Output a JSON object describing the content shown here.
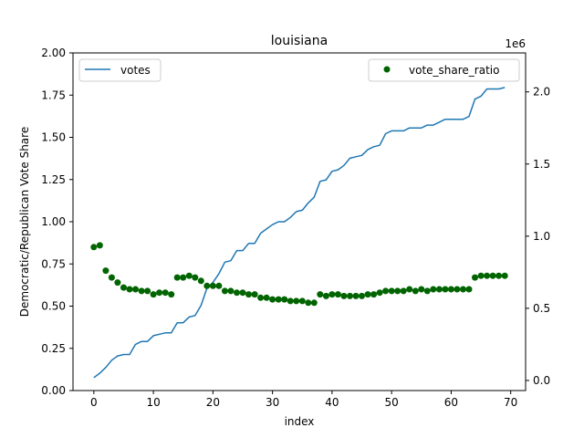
{
  "chart_data": {
    "type": "line+scatter",
    "title": "louisiana",
    "xlabel": "index",
    "ylabel": "Democratic/Republican Vote Share",
    "y2_offset_label": "1e6",
    "xlim": [
      -3.5,
      72.5
    ],
    "ylim": [
      0,
      2.0
    ],
    "y2lim": [
      -0.07,
      2.27
    ],
    "x_ticks": [
      0,
      10,
      20,
      30,
      40,
      50,
      60,
      70
    ],
    "y_ticks": [
      "0.00",
      "0.25",
      "0.50",
      "0.75",
      "1.00",
      "1.25",
      "1.50",
      "1.75",
      "2.00"
    ],
    "y2_ticks": [
      "0.0",
      "0.5",
      "1.0",
      "1.5",
      "2.0"
    ],
    "grid": false,
    "legend_left": {
      "position": "upper left",
      "label": "votes"
    },
    "legend_right": {
      "position": "upper right",
      "label": "vote_share_ratio"
    },
    "series": [
      {
        "name": "votes",
        "axis": "right",
        "kind": "line",
        "color": "#1f77b4",
        "x": [
          0,
          1,
          2,
          3,
          4,
          5,
          6,
          7,
          8,
          9,
          10,
          11,
          12,
          13,
          14,
          15,
          16,
          17,
          18,
          19,
          20,
          21,
          22,
          23,
          24,
          25,
          26,
          27,
          28,
          29,
          30,
          31,
          32,
          33,
          34,
          35,
          36,
          37,
          38,
          39,
          40,
          41,
          42,
          43,
          44,
          45,
          46,
          47,
          48,
          49,
          50,
          51,
          52,
          53,
          54,
          55,
          56,
          57,
          58,
          59,
          60,
          61,
          62,
          63,
          64,
          65,
          66,
          67,
          68,
          69
        ],
        "values": [
          0.02,
          0.05,
          0.09,
          0.14,
          0.17,
          0.18,
          0.18,
          0.25,
          0.27,
          0.27,
          0.31,
          0.32,
          0.33,
          0.33,
          0.4,
          0.4,
          0.44,
          0.45,
          0.52,
          0.64,
          0.68,
          0.74,
          0.82,
          0.83,
          0.9,
          0.9,
          0.95,
          0.95,
          1.02,
          1.05,
          1.08,
          1.1,
          1.1,
          1.13,
          1.17,
          1.18,
          1.23,
          1.27,
          1.38,
          1.39,
          1.45,
          1.46,
          1.49,
          1.54,
          1.55,
          1.56,
          1.6,
          1.62,
          1.63,
          1.71,
          1.73,
          1.73,
          1.73,
          1.75,
          1.75,
          1.75,
          1.77,
          1.77,
          1.79,
          1.81,
          1.81,
          1.81,
          1.81,
          1.83,
          1.95,
          1.97,
          2.02,
          2.02,
          2.02,
          2.03
        ]
      },
      {
        "name": "vote_share_ratio",
        "axis": "left",
        "kind": "scatter",
        "color": "#006400",
        "x": [
          0,
          1,
          2,
          3,
          4,
          5,
          6,
          7,
          8,
          9,
          10,
          11,
          12,
          13,
          14,
          15,
          16,
          17,
          18,
          19,
          20,
          21,
          22,
          23,
          24,
          25,
          26,
          27,
          28,
          29,
          30,
          31,
          32,
          33,
          34,
          35,
          36,
          37,
          38,
          39,
          40,
          41,
          42,
          43,
          44,
          45,
          46,
          47,
          48,
          49,
          50,
          51,
          52,
          53,
          54,
          55,
          56,
          57,
          58,
          59,
          60,
          61,
          62,
          63,
          64,
          65,
          66,
          67,
          68,
          69
        ],
        "values": [
          0.85,
          0.86,
          0.71,
          0.67,
          0.64,
          0.61,
          0.6,
          0.6,
          0.59,
          0.59,
          0.57,
          0.58,
          0.58,
          0.57,
          0.67,
          0.67,
          0.68,
          0.67,
          0.65,
          0.62,
          0.62,
          0.62,
          0.59,
          0.59,
          0.58,
          0.58,
          0.57,
          0.57,
          0.55,
          0.55,
          0.54,
          0.54,
          0.54,
          0.53,
          0.53,
          0.53,
          0.52,
          0.52,
          0.57,
          0.56,
          0.57,
          0.57,
          0.56,
          0.56,
          0.56,
          0.56,
          0.57,
          0.57,
          0.58,
          0.59,
          0.59,
          0.59,
          0.59,
          0.6,
          0.59,
          0.6,
          0.59,
          0.6,
          0.6,
          0.6,
          0.6,
          0.6,
          0.6,
          0.6,
          0.67,
          0.68,
          0.68,
          0.68,
          0.68,
          0.68
        ]
      }
    ]
  }
}
